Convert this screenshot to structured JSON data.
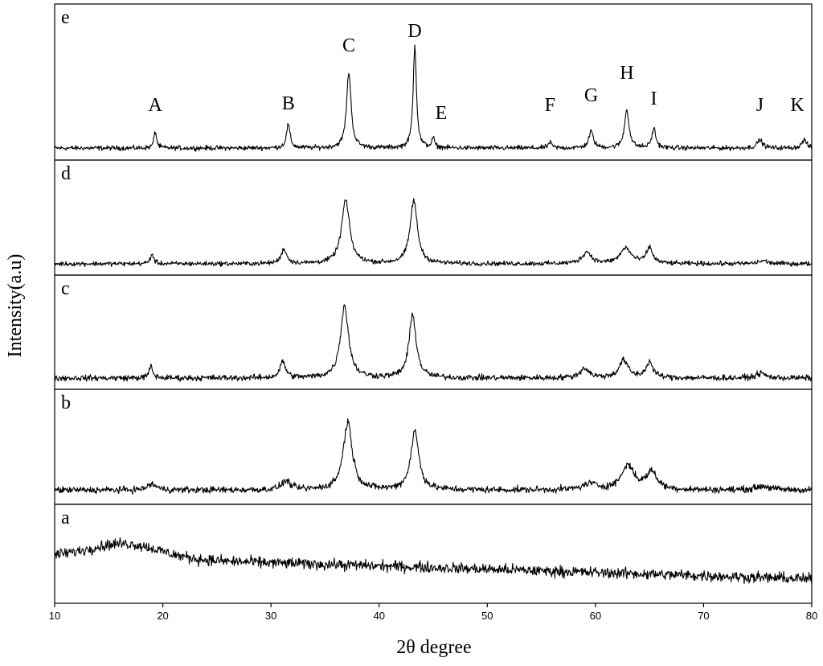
{
  "chart_data": {
    "type": "line",
    "title": "",
    "xlabel": "2θ degree",
    "ylabel": "Intensity(a.u)",
    "xlim": [
      10,
      80
    ],
    "x_ticks": [
      10,
      20,
      30,
      40,
      50,
      60,
      70,
      80
    ],
    "grid": false,
    "stacked_panels": true,
    "panels": [
      {
        "label": "e",
        "baseline": 0.04,
        "noise": 0.025,
        "peaks": [
          {
            "x": 19.3,
            "height": 0.12,
            "width": 0.15
          },
          {
            "x": 31.6,
            "height": 0.17,
            "width": 0.2
          },
          {
            "x": 37.2,
            "height": 0.55,
            "width": 0.25
          },
          {
            "x": 43.3,
            "height": 0.75,
            "width": 0.18
          },
          {
            "x": 45.0,
            "height": 0.07,
            "width": 0.15
          },
          {
            "x": 55.8,
            "height": 0.04,
            "width": 0.2
          },
          {
            "x": 59.6,
            "height": 0.12,
            "width": 0.25
          },
          {
            "x": 62.9,
            "height": 0.28,
            "width": 0.25
          },
          {
            "x": 65.4,
            "height": 0.14,
            "width": 0.22
          },
          {
            "x": 75.2,
            "height": 0.06,
            "width": 0.3
          },
          {
            "x": 79.3,
            "height": 0.06,
            "width": 0.25
          }
        ]
      },
      {
        "label": "d",
        "baseline": 0.05,
        "noise": 0.035,
        "peaks": [
          {
            "x": 19.0,
            "height": 0.1,
            "width": 0.18
          },
          {
            "x": 31.2,
            "height": 0.15,
            "width": 0.3
          },
          {
            "x": 36.9,
            "height": 0.65,
            "width": 0.45
          },
          {
            "x": 43.2,
            "height": 0.65,
            "width": 0.4
          },
          {
            "x": 59.2,
            "height": 0.12,
            "width": 0.5
          },
          {
            "x": 62.8,
            "height": 0.16,
            "width": 0.6
          },
          {
            "x": 65.0,
            "height": 0.16,
            "width": 0.35
          },
          {
            "x": 75.5,
            "height": 0.03,
            "width": 0.5
          }
        ]
      },
      {
        "label": "c",
        "baseline": 0.05,
        "noise": 0.045,
        "peaks": [
          {
            "x": 18.9,
            "height": 0.12,
            "width": 0.2
          },
          {
            "x": 31.1,
            "height": 0.17,
            "width": 0.3
          },
          {
            "x": 36.8,
            "height": 0.75,
            "width": 0.45
          },
          {
            "x": 43.1,
            "height": 0.65,
            "width": 0.4
          },
          {
            "x": 59.0,
            "height": 0.1,
            "width": 0.5
          },
          {
            "x": 62.6,
            "height": 0.18,
            "width": 0.5
          },
          {
            "x": 65.0,
            "height": 0.16,
            "width": 0.4
          },
          {
            "x": 75.3,
            "height": 0.05,
            "width": 0.5
          }
        ]
      },
      {
        "label": "b",
        "baseline": 0.08,
        "noise": 0.05,
        "peaks": [
          {
            "x": 19.0,
            "height": 0.06,
            "width": 0.5
          },
          {
            "x": 31.4,
            "height": 0.09,
            "width": 0.5
          },
          {
            "x": 37.1,
            "height": 0.7,
            "width": 0.5
          },
          {
            "x": 43.3,
            "height": 0.6,
            "width": 0.45
          },
          {
            "x": 59.5,
            "height": 0.06,
            "width": 0.8
          },
          {
            "x": 63.0,
            "height": 0.25,
            "width": 0.7
          },
          {
            "x": 65.2,
            "height": 0.18,
            "width": 0.6
          },
          {
            "x": 75.5,
            "height": 0.04,
            "width": 0.8
          }
        ]
      },
      {
        "label": "a",
        "amorphous": true,
        "noise": 0.1,
        "broad_hump": {
          "center": 16.5,
          "height": 0.18,
          "width": 4.5
        },
        "baseline_start": 0.5,
        "baseline_end": 0.22
      }
    ],
    "peak_labels": [
      {
        "label": "A",
        "x": 19.3
      },
      {
        "label": "B",
        "x": 31.6
      },
      {
        "label": "C",
        "x": 37.2
      },
      {
        "label": "D",
        "x": 43.3
      },
      {
        "label": "E",
        "x": 45.0
      },
      {
        "label": "F",
        "x": 55.8
      },
      {
        "label": "G",
        "x": 59.6
      },
      {
        "label": "H",
        "x": 62.9
      },
      {
        "label": "I",
        "x": 65.4
      },
      {
        "label": "J",
        "x": 75.2
      },
      {
        "label": "K",
        "x": 79.3
      }
    ]
  }
}
